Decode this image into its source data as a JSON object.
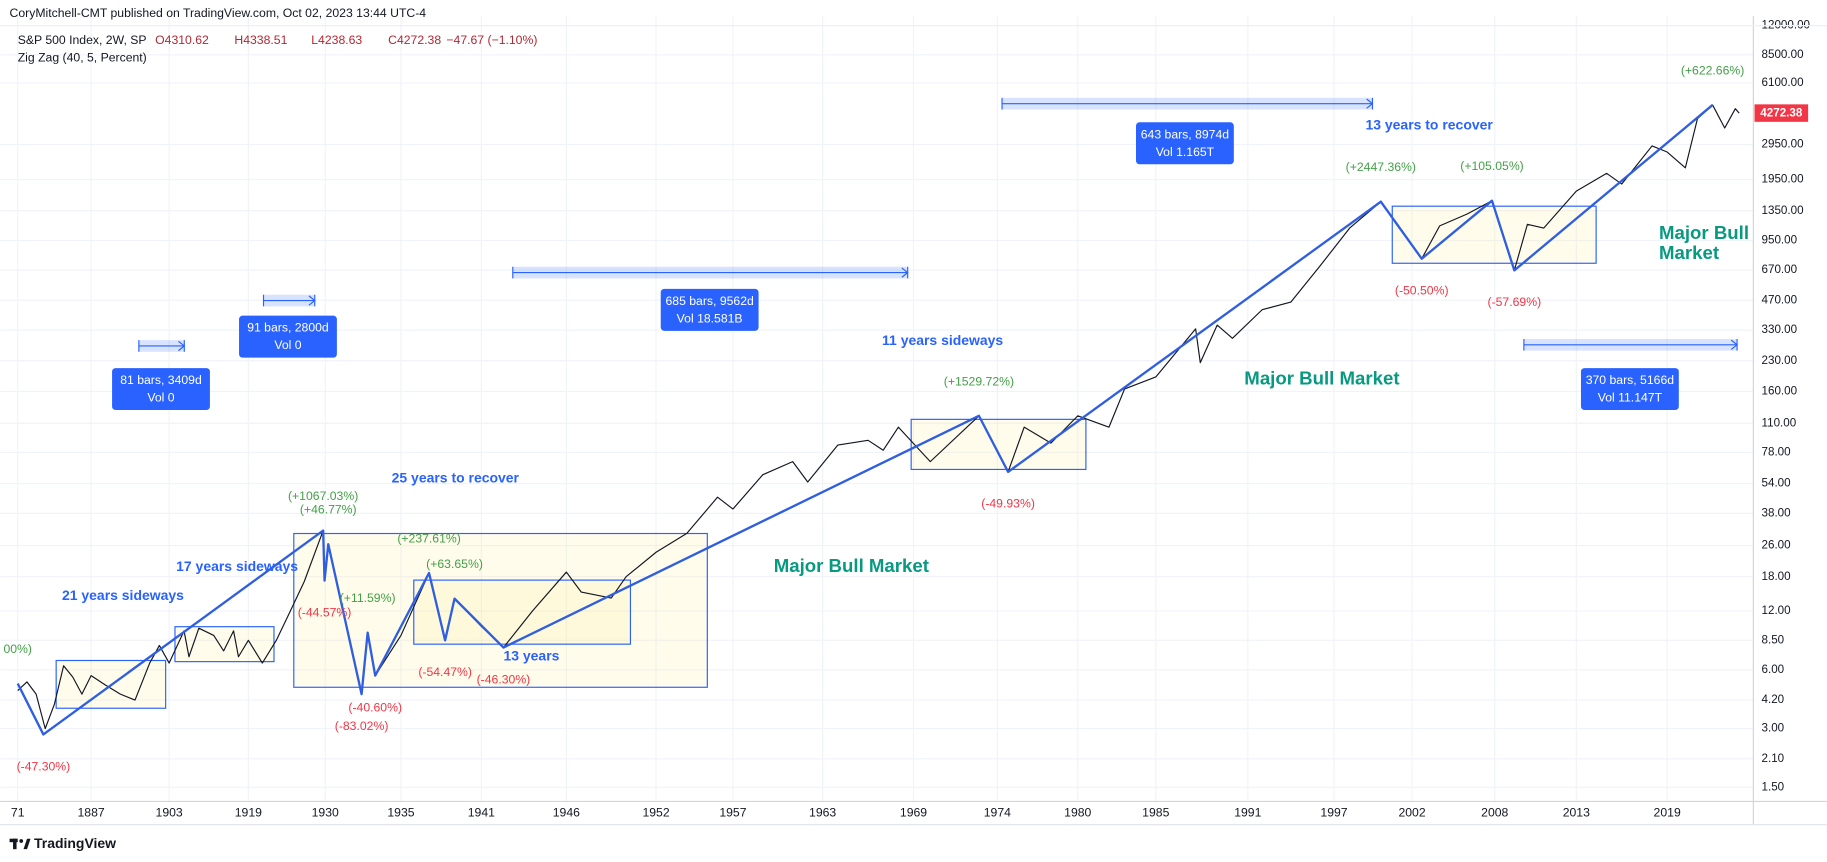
{
  "header": {
    "text": "CoryMitchell-CMT published on TradingView.com, Oct 02, 2023 13:44 UTC-4"
  },
  "footer": {
    "brand": "TradingView"
  },
  "chart_data": {
    "type": "line",
    "log_scale": true,
    "grid": true,
    "legend_values": [
      "O4310.62",
      "H4338.51",
      "L4238.63",
      "C4272.38",
      "−47.67 (−1.10%)"
    ],
    "last_price": 4272.38,
    "last_price_color": "#f23645",
    "ylim": [
      1.27,
      13200
    ],
    "yticks": [
      {
        "value": 1.5,
        "label": "1.50"
      },
      {
        "value": 2.1,
        "label": "2.10"
      },
      {
        "value": 3,
        "label": "3.00"
      },
      {
        "value": 4.2,
        "label": "4.20"
      },
      {
        "value": 6,
        "label": "6.00"
      },
      {
        "value": 8.5,
        "label": "8.50"
      },
      {
        "value": 12,
        "label": "12.00"
      },
      {
        "value": 18,
        "label": "18.00"
      },
      {
        "value": 26,
        "label": "26.00"
      },
      {
        "value": 38,
        "label": "38.00"
      },
      {
        "value": 54,
        "label": "54.00"
      },
      {
        "value": 78,
        "label": "78.00"
      },
      {
        "value": 110,
        "label": "110.00"
      },
      {
        "value": 160,
        "label": "160.00"
      },
      {
        "value": 230,
        "label": "230.00"
      },
      {
        "value": 330,
        "label": "330.00"
      },
      {
        "value": 470,
        "label": "470.00"
      },
      {
        "value": 670,
        "label": "670.00"
      },
      {
        "value": 950,
        "label": "950.00"
      },
      {
        "value": 1350,
        "label": "1350.00"
      },
      {
        "value": 1950,
        "label": "1950.00"
      },
      {
        "value": 2950,
        "label": "2950.00"
      },
      {
        "value": 6100,
        "label": "6100.00"
      },
      {
        "value": 8500,
        "label": "8500.00"
      },
      {
        "value": 12000,
        "label": "12000.00"
      }
    ],
    "xticks": [
      {
        "value": 1871,
        "label": "71"
      },
      1887,
      1903,
      1919,
      1930,
      1935,
      1941,
      1946,
      1952,
      1957,
      1963,
      1969,
      1974,
      1980,
      1985,
      1991,
      1997,
      2002,
      2008,
      2013,
      2019
    ],
    "series": [
      {
        "name": "S&P 500 Index, 2W, SP",
        "color": "#131722",
        "x": [
          1871,
          1873,
          1875,
          1877,
          1879,
          1881,
          1883,
          1885,
          1887,
          1890,
          1893,
          1896,
          1899,
          1901,
          1903,
          1906,
          1907,
          1909,
          1912,
          1914,
          1916,
          1917,
          1919,
          1921,
          1923,
          1925,
          1927,
          1929.7,
          1929.9,
          1930.2,
          1932.4,
          1932.8,
          1933.3,
          1935,
          1937.1,
          1938.3,
          1939,
          1941,
          1942.3,
          1944,
          1946,
          1947,
          1949,
          1950,
          1952,
          1954,
          1956,
          1957,
          1959,
          1961,
          1962,
          1964,
          1966,
          1967,
          1968,
          1970,
          1972.9,
          1974.8,
          1976,
          1978,
          1980,
          1982,
          1983,
          1985,
          1987.6,
          1987.9,
          1989,
          1990,
          1992,
          1994,
          1996,
          1998,
          2000,
          2001,
          2002.7,
          2004,
          2006,
          2007.8,
          2009.2,
          2010,
          2011,
          2013,
          2015,
          2016,
          2018,
          2019,
          2020.2,
          2021,
          2022,
          2022.8,
          2023.5,
          2023.75
        ],
        "values": [
          4.7,
          5.2,
          4.5,
          3.0,
          4.0,
          6.3,
          5.5,
          4.5,
          5.6,
          5.0,
          4.5,
          4.2,
          6.5,
          8.0,
          6.5,
          9.5,
          7.0,
          9.8,
          9.0,
          7.5,
          9.5,
          7.0,
          8.5,
          6.5,
          8.5,
          12,
          17,
          31,
          17.2,
          26.4,
          4.5,
          9.3,
          5.6,
          9,
          18.8,
          8.5,
          13.9,
          10,
          7.8,
          12,
          19,
          15,
          14,
          18,
          24,
          30,
          46,
          40,
          60,
          70,
          55,
          85,
          90,
          80,
          105,
          70,
          120,
          62,
          105,
          87,
          120,
          105,
          165,
          190,
          335,
          225,
          350,
          300,
          420,
          460,
          700,
          1100,
          1503,
          1150,
          767,
          1130,
          1300,
          1520,
          668,
          1150,
          1100,
          1700,
          2100,
          1850,
          2900,
          2700,
          2240,
          4000,
          4700,
          3580,
          4500,
          4272.38
        ]
      },
      {
        "name": "Zig Zag (40, 5, Percent)",
        "color": "#2f5fe0",
        "x": [
          1871,
          1876.6,
          1929.7,
          1929.9,
          1930.2,
          1932.4,
          1932.8,
          1933.3,
          1937.1,
          1938.3,
          1939,
          1942.3,
          1972.9,
          1974.8,
          2000,
          2002.7,
          2007.8,
          2009.2,
          2022
        ],
        "values": [
          5.1,
          2.8,
          31,
          17.2,
          26.4,
          4.5,
          9.3,
          5.6,
          18.8,
          8.5,
          13.9,
          7.8,
          120,
          62,
          1503,
          767,
          1520,
          668,
          4700
        ],
        "labels": [
          [
            "00%)"
          ],
          [
            "(-47.30%)"
          ],
          [
            "(+1067.03%)"
          ],
          [
            "(-44.57%)"
          ],
          [
            "(+46.77%)"
          ],
          [
            "(-83.02%)"
          ],
          [
            "(+11.59%)"
          ],
          [
            "(-40.60%)"
          ],
          [
            "(+237.61%)"
          ],
          [
            "(-54.47%)"
          ],
          [
            "(+63.65%)"
          ],
          [
            "(-46.30%)"
          ],
          [
            "(+1529.72%)"
          ],
          [
            "(-49.93%)"
          ],
          [
            "(+2447.36%)"
          ],
          [
            "(-50.50%)"
          ],
          [
            "(+105.05%)"
          ],
          [
            "(-57.69%)"
          ],
          [
            "(+622.66%)"
          ]
        ]
      }
    ],
    "annotations": [
      "21 years sideways",
      "17 years sideways",
      "25 years to recover",
      "13 years",
      "11 years sideways",
      "13 years to recover",
      "Major Bull Market",
      "Major Bull Market",
      "Major Bull",
      "Market"
    ],
    "measures": [
      [
        "81 bars, 3409d",
        "Vol 0"
      ],
      [
        "91 bars, 2800d",
        "Vol 0"
      ],
      [
        "685 bars, 9562d",
        "Vol 18.581B"
      ],
      [
        "643 bars, 8974d",
        "Vol 1.165T"
      ],
      [
        "370 bars, 5166d",
        "Vol 11.147T"
      ]
    ]
  }
}
